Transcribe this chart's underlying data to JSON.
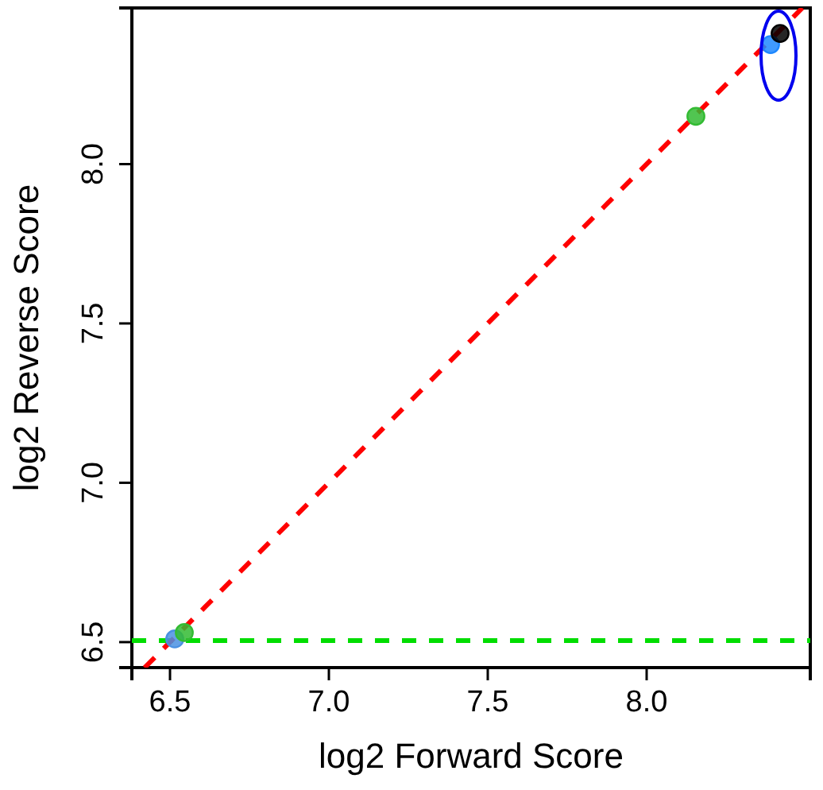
{
  "chart_data": {
    "type": "scatter",
    "xlabel": "log2 Forward Score",
    "ylabel": "log2 Reverse Score",
    "xlim": [
      6.38,
      8.515
    ],
    "ylim": [
      6.42,
      8.49
    ],
    "xticks": [
      6.5,
      {
        "value": 7,
        "label": "7.0"
      },
      7.5,
      {
        "value": 8,
        "label": "8.0"
      }
    ],
    "yticks": [
      6.5,
      {
        "value": 7,
        "label": "7.0"
      },
      7.5,
      {
        "value": 8,
        "label": "8.0"
      }
    ],
    "grid": false,
    "series": [
      {
        "type": "line",
        "color": "#ff0000",
        "line_style": "dashed",
        "x": [
          6.42,
          8.49
        ],
        "values": [
          6.42,
          8.49
        ]
      },
      {
        "marker": "circle",
        "x": [
          6.515,
          6.545,
          8.155,
          8.39,
          8.42
        ],
        "values": [
          6.51,
          6.53,
          8.15,
          8.375,
          8.41
        ],
        "colors": [
          "#4a90e2",
          "#33bb33",
          "#33bb33",
          "#1e88ff",
          "#000000"
        ]
      }
    ],
    "ref_lines": [
      {
        "axis": "y",
        "value": 6.505,
        "color": "#00dd00",
        "line_style": "dashed"
      }
    ]
  }
}
